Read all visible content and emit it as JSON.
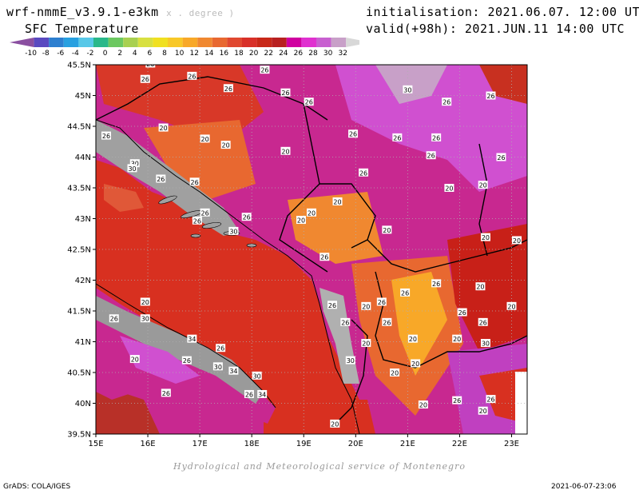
{
  "header": {
    "model": "wrf-nmmE_v3.9.1-e3km",
    "units": "x . degree )",
    "variable": "SFC Temperature",
    "init": "initialisation: 2021.06.07. 12:00 UTC",
    "valid": "valid(+98h): 2021.JUN.11 14:00 UTC"
  },
  "colorbar": {
    "labels": [
      "-10",
      "-8",
      "-6",
      "-4",
      "-2",
      "0",
      "2",
      "4",
      "6",
      "8",
      "10",
      "12",
      "14",
      "16",
      "18",
      "20",
      "22",
      "24",
      "26",
      "28",
      "30",
      "32"
    ],
    "colors": [
      "#8a4fa0",
      "#5a4ac0",
      "#2d7fd0",
      "#28a0e0",
      "#58c8e8",
      "#2ab88a",
      "#6cc860",
      "#a8d050",
      "#d8e040",
      "#f0e020",
      "#f8c828",
      "#f8a828",
      "#f08830",
      "#e86830",
      "#e04830",
      "#d83028",
      "#c82818",
      "#b82020",
      "#d000a0",
      "#e030d0",
      "#c860d0",
      "#c8a0c8",
      "#d8d8d8"
    ]
  },
  "map": {
    "lon_ticks": [
      "15E",
      "16E",
      "17E",
      "18E",
      "19E",
      "20E",
      "21E",
      "22E",
      "23E"
    ],
    "lat_ticks": [
      "45.5N",
      "45N",
      "44.5N",
      "44N",
      "43.5N",
      "43N",
      "42.5N",
      "42N",
      "41.5N",
      "41N",
      "40.5N",
      "40N",
      "39.5N"
    ],
    "sea_color": "#d83020",
    "land_color": "#c02890",
    "contour_labels": [
      {
        "t": "26",
        "lon": 16.05,
        "lat": 45.52
      },
      {
        "t": "26",
        "lon": 16.85,
        "lat": 45.32
      },
      {
        "t": "26",
        "lon": 15.95,
        "lat": 45.27
      },
      {
        "t": "26",
        "lon": 18.25,
        "lat": 45.42
      },
      {
        "t": "26",
        "lon": 17.55,
        "lat": 45.12
      },
      {
        "t": "30",
        "lon": 21.0,
        "lat": 45.1
      },
      {
        "t": "26",
        "lon": 18.65,
        "lat": 45.05
      },
      {
        "t": "26",
        "lon": 21.75,
        "lat": 44.9
      },
      {
        "t": "26",
        "lon": 22.6,
        "lat": 45.0
      },
      {
        "t": "26",
        "lon": 19.1,
        "lat": 44.9
      },
      {
        "t": "20",
        "lon": 16.3,
        "lat": 44.48
      },
      {
        "t": "26",
        "lon": 15.2,
        "lat": 44.35
      },
      {
        "t": "20",
        "lon": 17.1,
        "lat": 44.3
      },
      {
        "t": "20",
        "lon": 17.5,
        "lat": 44.2
      },
      {
        "t": "26",
        "lon": 19.95,
        "lat": 44.38
      },
      {
        "t": "26",
        "lon": 20.8,
        "lat": 44.32
      },
      {
        "t": "26",
        "lon": 21.55,
        "lat": 44.32
      },
      {
        "t": "26",
        "lon": 21.45,
        "lat": 44.03
      },
      {
        "t": "26",
        "lon": 22.8,
        "lat": 44.0
      },
      {
        "t": "20",
        "lon": 18.65,
        "lat": 44.1
      },
      {
        "t": "30",
        "lon": 15.75,
        "lat": 43.9
      },
      {
        "t": "30",
        "lon": 15.7,
        "lat": 43.82
      },
      {
        "t": "26",
        "lon": 20.15,
        "lat": 43.75
      },
      {
        "t": "26",
        "lon": 16.25,
        "lat": 43.65
      },
      {
        "t": "26",
        "lon": 16.9,
        "lat": 43.6
      },
      {
        "t": "20",
        "lon": 21.8,
        "lat": 43.5
      },
      {
        "t": "20",
        "lon": 22.45,
        "lat": 43.55
      },
      {
        "t": "20",
        "lon": 19.65,
        "lat": 43.28
      },
      {
        "t": "20",
        "lon": 19.15,
        "lat": 43.1
      },
      {
        "t": "26",
        "lon": 17.1,
        "lat": 43.1
      },
      {
        "t": "26",
        "lon": 17.9,
        "lat": 43.03
      },
      {
        "t": "26",
        "lon": 16.95,
        "lat": 42.97
      },
      {
        "t": "20",
        "lon": 18.95,
        "lat": 42.98
      },
      {
        "t": "30",
        "lon": 17.65,
        "lat": 42.8
      },
      {
        "t": "20",
        "lon": 20.6,
        "lat": 42.82
      },
      {
        "t": "20",
        "lon": 22.5,
        "lat": 42.7
      },
      {
        "t": "20",
        "lon": 23.1,
        "lat": 42.65
      },
      {
        "t": "26",
        "lon": 19.4,
        "lat": 42.38
      },
      {
        "t": "26",
        "lon": 21.55,
        "lat": 41.95
      },
      {
        "t": "26",
        "lon": 20.95,
        "lat": 41.8
      },
      {
        "t": "26",
        "lon": 20.5,
        "lat": 41.65
      },
      {
        "t": "20",
        "lon": 22.4,
        "lat": 41.9
      },
      {
        "t": "20",
        "lon": 15.95,
        "lat": 41.65
      },
      {
        "t": "26",
        "lon": 19.55,
        "lat": 41.6
      },
      {
        "t": "20",
        "lon": 20.2,
        "lat": 41.58
      },
      {
        "t": "20",
        "lon": 23.0,
        "lat": 41.58
      },
      {
        "t": "26",
        "lon": 22.05,
        "lat": 41.48
      },
      {
        "t": "26",
        "lon": 15.35,
        "lat": 41.38
      },
      {
        "t": "30",
        "lon": 15.95,
        "lat": 41.38
      },
      {
        "t": "26",
        "lon": 19.8,
        "lat": 41.32
      },
      {
        "t": "26",
        "lon": 20.6,
        "lat": 41.32
      },
      {
        "t": "26",
        "lon": 22.45,
        "lat": 41.32
      },
      {
        "t": "34",
        "lon": 16.85,
        "lat": 41.05
      },
      {
        "t": "20",
        "lon": 21.1,
        "lat": 41.05
      },
      {
        "t": "20",
        "lon": 21.95,
        "lat": 41.05
      },
      {
        "t": "30",
        "lon": 22.5,
        "lat": 40.98
      },
      {
        "t": "20",
        "lon": 20.2,
        "lat": 40.98
      },
      {
        "t": "26",
        "lon": 17.4,
        "lat": 40.9
      },
      {
        "t": "20",
        "lon": 15.75,
        "lat": 40.72
      },
      {
        "t": "26",
        "lon": 16.75,
        "lat": 40.7
      },
      {
        "t": "30",
        "lon": 19.9,
        "lat": 40.7
      },
      {
        "t": "20",
        "lon": 21.15,
        "lat": 40.65
      },
      {
        "t": "30",
        "lon": 17.35,
        "lat": 40.6
      },
      {
        "t": "34",
        "lon": 17.65,
        "lat": 40.53
      },
      {
        "t": "20",
        "lon": 20.75,
        "lat": 40.5
      },
      {
        "t": "30",
        "lon": 18.1,
        "lat": 40.45
      },
      {
        "t": "26",
        "lon": 16.35,
        "lat": 40.17
      },
      {
        "t": "26",
        "lon": 17.95,
        "lat": 40.15
      },
      {
        "t": "34",
        "lon": 18.2,
        "lat": 40.15
      },
      {
        "t": "26",
        "lon": 21.95,
        "lat": 40.05
      },
      {
        "t": "26",
        "lon": 22.6,
        "lat": 40.07
      },
      {
        "t": "20",
        "lon": 21.3,
        "lat": 39.98
      },
      {
        "t": "20",
        "lon": 22.45,
        "lat": 39.88
      },
      {
        "t": "20",
        "lon": 19.6,
        "lat": 39.67
      }
    ]
  },
  "footer": {
    "credit": "Hydrological and Meteorological service of Montenegro",
    "grads": "GrADS: COLA/IGES",
    "timestamp": "2021-06-07-23:06"
  }
}
